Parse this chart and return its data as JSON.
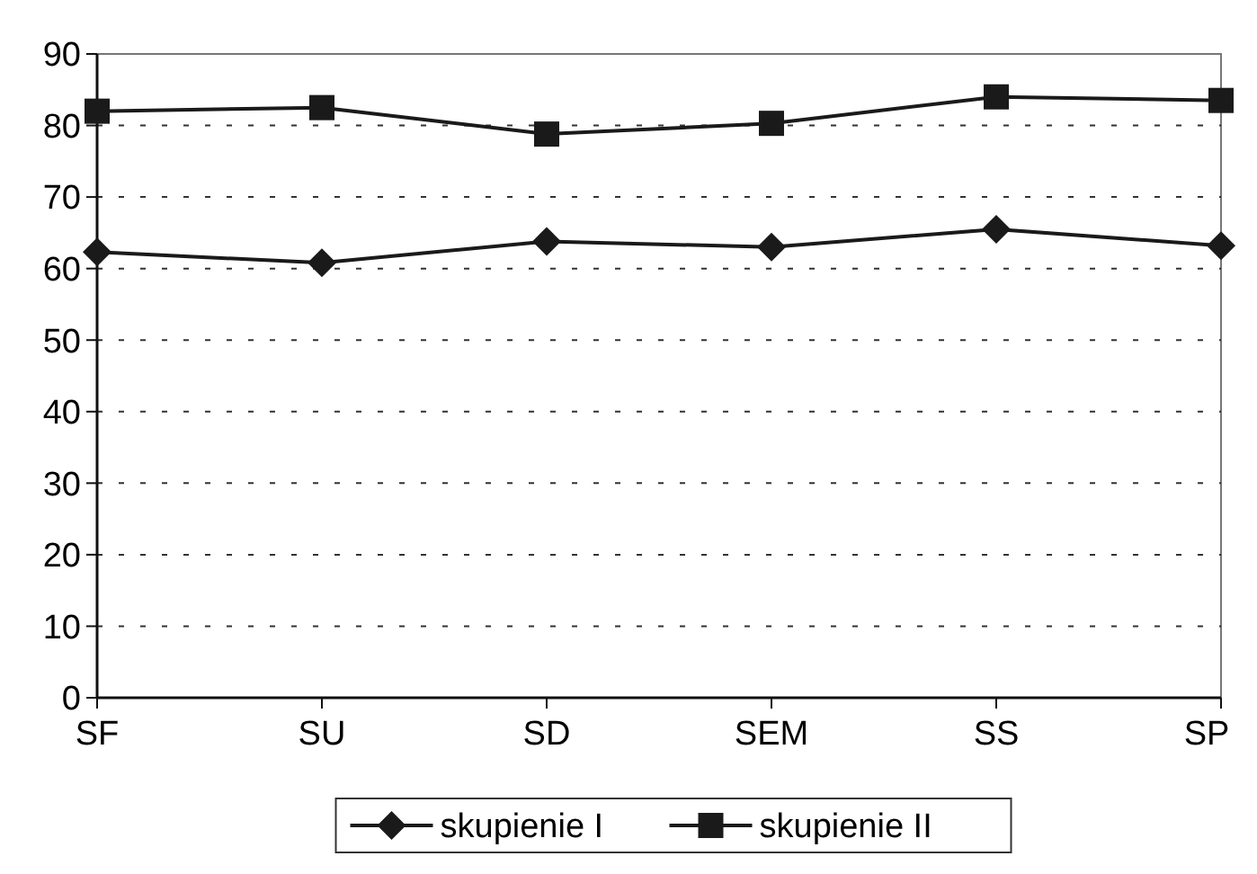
{
  "chart_data": {
    "type": "line",
    "categories": [
      "SF",
      "SU",
      "SD",
      "SEM",
      "SS",
      "SP"
    ],
    "series": [
      {
        "name": "skupienie I",
        "color": "#1a1a1a",
        "marker": "diamond",
        "values": [
          62.3,
          60.8,
          63.8,
          63,
          65.5,
          63.2
        ]
      },
      {
        "name": "skupienie II",
        "color": "#1a1a1a",
        "marker": "square",
        "values": [
          82,
          82.5,
          78.8,
          80.3,
          84,
          83.5
        ]
      }
    ],
    "ylim": [
      0,
      90
    ],
    "yticks": [
      0,
      10,
      20,
      30,
      40,
      50,
      60,
      70,
      80,
      90
    ],
    "grid": "y",
    "legend": "bottom",
    "line_style": "solid"
  }
}
